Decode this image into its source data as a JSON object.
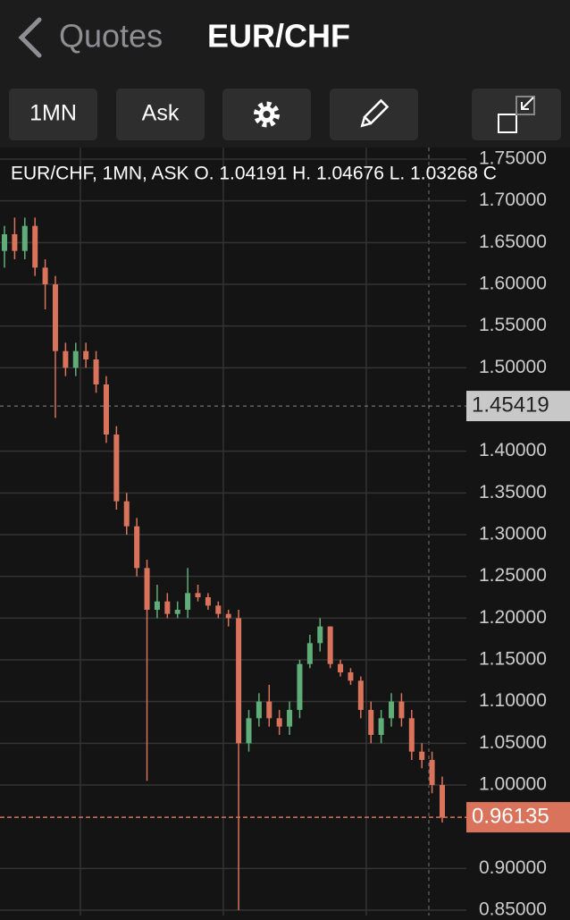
{
  "header": {
    "back": "Quotes",
    "title": "EUR/CHF"
  },
  "toolbar": {
    "period": "1MN",
    "price_type": "Ask"
  },
  "chart_data": {
    "type": "candlestick",
    "info": "EUR/CHF, 1MN, ASK   O. 1.04191 H. 1.04676 L. 1.03268 C",
    "up_color": "#5fae7a",
    "down_color": "#d9735b",
    "open": [
      1.64,
      1.66,
      1.64,
      1.67,
      1.62,
      1.6,
      1.52,
      1.5,
      1.52,
      1.51,
      1.48,
      1.42,
      1.34,
      1.31,
      1.26,
      1.21,
      1.22,
      1.205,
      1.21,
      1.23,
      1.225,
      1.215,
      1.205,
      1.2,
      1.05,
      1.08,
      1.1,
      1.08,
      1.07,
      1.09,
      1.145,
      1.17,
      1.19,
      1.145,
      1.135,
      1.125,
      1.09,
      1.06,
      1.08,
      1.1,
      1.08,
      1.04,
      1.03,
      1.0
    ],
    "high": [
      1.67,
      1.68,
      1.68,
      1.68,
      1.63,
      1.61,
      1.53,
      1.53,
      1.53,
      1.52,
      1.49,
      1.43,
      1.35,
      1.32,
      1.27,
      1.24,
      1.23,
      1.22,
      1.26,
      1.24,
      1.23,
      1.22,
      1.21,
      1.21,
      1.09,
      1.11,
      1.12,
      1.09,
      1.1,
      1.15,
      1.18,
      1.2,
      1.19,
      1.15,
      1.14,
      1.13,
      1.1,
      1.09,
      1.11,
      1.11,
      1.09,
      1.05,
      1.04,
      1.01
    ],
    "low": [
      1.62,
      1.63,
      1.63,
      1.61,
      1.57,
      1.44,
      1.49,
      1.49,
      1.5,
      1.47,
      1.41,
      1.33,
      1.3,
      1.25,
      1.005,
      1.2,
      1.2,
      1.2,
      1.2,
      1.22,
      1.21,
      1.2,
      1.19,
      0.85,
      1.04,
      1.07,
      1.07,
      1.06,
      1.06,
      1.08,
      1.14,
      1.16,
      1.14,
      1.13,
      1.12,
      1.08,
      1.05,
      1.05,
      1.07,
      1.07,
      1.03,
      1.02,
      0.99,
      0.955
    ],
    "close": [
      1.66,
      1.64,
      1.67,
      1.62,
      1.6,
      1.52,
      1.5,
      1.52,
      1.51,
      1.48,
      1.42,
      1.34,
      1.31,
      1.26,
      1.21,
      1.22,
      1.205,
      1.21,
      1.23,
      1.225,
      1.215,
      1.205,
      1.2,
      1.05,
      1.08,
      1.1,
      1.08,
      1.07,
      1.09,
      1.145,
      1.17,
      1.19,
      1.145,
      1.135,
      1.125,
      1.09,
      1.06,
      1.08,
      1.1,
      1.08,
      1.04,
      1.03,
      1.0,
      0.961
    ],
    "ylim": [
      0.85,
      1.75
    ],
    "yticks": [
      {
        "value": 0.85,
        "label": "0.85000"
      },
      {
        "value": 0.9,
        "label": "0.90000"
      },
      {
        "value": 1.0,
        "label": "1.00000"
      },
      {
        "value": 1.05,
        "label": "1.05000"
      },
      {
        "value": 1.1,
        "label": "1.10000"
      },
      {
        "value": 1.15,
        "label": "1.15000"
      },
      {
        "value": 1.2,
        "label": "1.20000"
      },
      {
        "value": 1.25,
        "label": "1.25000"
      },
      {
        "value": 1.3,
        "label": "1.30000"
      },
      {
        "value": 1.35,
        "label": "1.35000"
      },
      {
        "value": 1.4,
        "label": "1.40000"
      },
      {
        "value": 1.5,
        "label": "1.50000"
      },
      {
        "value": 1.55,
        "label": "1.55000"
      },
      {
        "value": 1.6,
        "label": "1.60000"
      },
      {
        "value": 1.65,
        "label": "1.65000"
      },
      {
        "value": 1.7,
        "label": "1.70000"
      },
      {
        "value": 1.75,
        "label": "1.75000"
      }
    ],
    "crosshair": {
      "value": 1.45419,
      "label": "1.45419"
    },
    "last_price": {
      "value": 0.96135,
      "label": "0.96135"
    }
  }
}
